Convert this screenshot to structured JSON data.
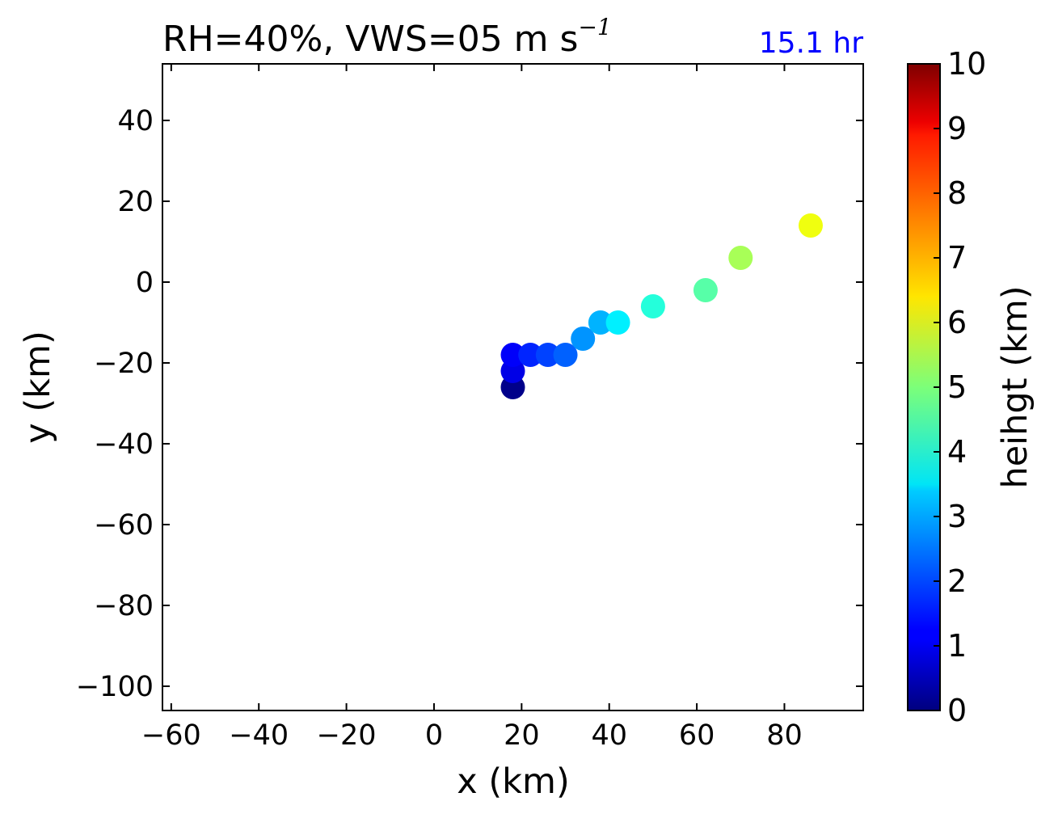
{
  "chart_data": {
    "type": "scatter",
    "title_main": "RH=40%, VWS=05 m s",
    "title_sup": "−1",
    "annotation": "15.1 hr",
    "xlabel": "x (km)",
    "ylabel": "y (km)",
    "xlim": [
      -62,
      98
    ],
    "ylim": [
      -106,
      54
    ],
    "xticks": [
      -60,
      -40,
      -20,
      0,
      20,
      40,
      60,
      80
    ],
    "yticks": [
      40,
      20,
      0,
      -20,
      -40,
      -60,
      -80,
      -100
    ],
    "xtick_labels": [
      "−60",
      "−40",
      "−20",
      "0",
      "20",
      "40",
      "60",
      "80"
    ],
    "ytick_labels": [
      "40",
      "20",
      "0",
      "−20",
      "−40",
      "−60",
      "−80",
      "−100"
    ],
    "grid": false,
    "colorbar": {
      "label": "heihgt (km)",
      "range": [
        0,
        10
      ],
      "ticks": [
        0,
        1,
        2,
        3,
        4,
        5,
        6,
        7,
        8,
        9,
        10
      ],
      "tick_labels": [
        "0",
        "1",
        "2",
        "3",
        "4",
        "5",
        "6",
        "7",
        "8",
        "9",
        "10"
      ],
      "colormap": "jet"
    },
    "points": [
      {
        "x": 18,
        "y": -26,
        "height": 0.1
      },
      {
        "x": 18,
        "y": -22,
        "height": 1.0
      },
      {
        "x": 18,
        "y": -18,
        "height": 1.2
      },
      {
        "x": 22,
        "y": -18,
        "height": 1.6
      },
      {
        "x": 26,
        "y": -18,
        "height": 1.9
      },
      {
        "x": 30,
        "y": -18,
        "height": 2.2
      },
      {
        "x": 34,
        "y": -14,
        "height": 2.7
      },
      {
        "x": 38,
        "y": -10,
        "height": 3.0
      },
      {
        "x": 42,
        "y": -10,
        "height": 3.6
      },
      {
        "x": 50,
        "y": -6,
        "height": 4.1
      },
      {
        "x": 62,
        "y": -2,
        "height": 4.6
      },
      {
        "x": 70,
        "y": 6,
        "height": 5.4
      },
      {
        "x": 86,
        "y": 14,
        "height": 6.1
      }
    ]
  }
}
